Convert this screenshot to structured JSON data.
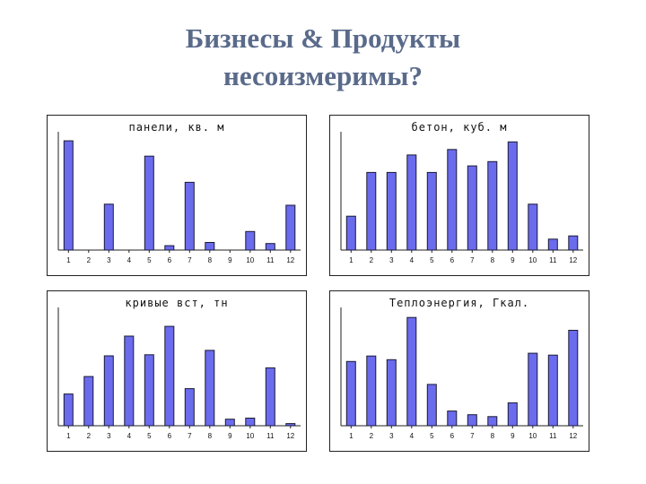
{
  "slide": {
    "title_line1": "Бизнесы & Продукты",
    "title_line2": "несоизмеримы?"
  },
  "chart_data": [
    {
      "type": "bar",
      "title": "панели, кв. м",
      "categories": [
        "1",
        "2",
        "3",
        "4",
        "5",
        "6",
        "7",
        "8",
        "9",
        "10",
        "11",
        "12"
      ],
      "values": [
        100,
        0,
        42,
        0,
        86,
        4,
        62,
        7,
        0,
        17,
        6,
        41
      ],
      "ylim": [
        0,
        105
      ]
    },
    {
      "type": "bar",
      "title": "бетон, куб. м",
      "categories": [
        "1",
        "2",
        "3",
        "4",
        "5",
        "6",
        "7",
        "8",
        "9",
        "10",
        "11",
        "12"
      ],
      "values": [
        31,
        71,
        71,
        87,
        71,
        92,
        77,
        81,
        99,
        42,
        10,
        13
      ],
      "ylim": [
        0,
        105
      ]
    },
    {
      "type": "bar",
      "title": "кривые вст, тн",
      "categories": [
        "1",
        "2",
        "3",
        "4",
        "5",
        "6",
        "7",
        "8",
        "9",
        "10",
        "11",
        "12"
      ],
      "values": [
        29,
        45,
        64,
        82,
        65,
        91,
        34,
        69,
        6,
        7,
        53,
        2
      ],
      "ylim": [
        0,
        105
      ]
    },
    {
      "type": "bar",
      "title": "Теплоэнергия, Гкал.",
      "categories": [
        "1",
        "2",
        "3",
        "4",
        "5",
        "6",
        "7",
        "8",
        "9",
        "10",
        "11",
        "12"
      ],
      "values": [
        70,
        76,
        72,
        118,
        45,
        16,
        12,
        10,
        25,
        79,
        77,
        104
      ],
      "ylim": [
        0,
        125
      ]
    }
  ]
}
